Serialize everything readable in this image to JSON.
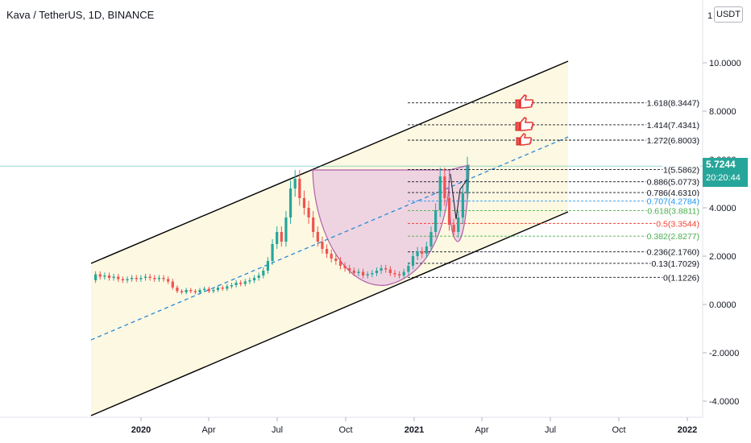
{
  "title": "Kava / TetherUS, 1D, BINANCE",
  "unit_badge": "USDT",
  "price_tag": {
    "price": "5.7244",
    "countdown": "20:20:44"
  },
  "colors": {
    "channel_fill": "#fdf8e2",
    "cup_fill": "#e8c8e0",
    "cup_stroke": "#b060a8",
    "candle_up": "#26a69a",
    "candle_down": "#ef5350",
    "trend_dash": "#2a8ad4",
    "price_line": "#26a69a",
    "thumb": "#ef5350"
  },
  "chart_data": {
    "type": "candlestick",
    "x_ticks": [
      "2020",
      "Apr",
      "Jul",
      "Oct",
      "2021",
      "Apr",
      "Jul",
      "Oct",
      "2022"
    ],
    "y_ticks": [
      "10.0000",
      "8.0000",
      "6.0000",
      "4.0000",
      "2.0000",
      "0.0000",
      "-2.0000",
      "-4.0000"
    ],
    "y_top_label": "1",
    "ylim": [
      -4.5,
      12
    ],
    "last_price": 5.7244,
    "fib_levels": [
      {
        "label": "1.618(8.3447)",
        "value": 8.3447,
        "color": "#131722"
      },
      {
        "label": "1.414(7.4341)",
        "value": 7.4341,
        "color": "#131722"
      },
      {
        "label": "1.272(6.8003)",
        "value": 6.8003,
        "color": "#131722"
      },
      {
        "label": "1(5.5862)",
        "value": 5.5862,
        "color": "#131722"
      },
      {
        "label": "0.886(5.0773)",
        "value": 5.0773,
        "color": "#131722"
      },
      {
        "label": "0.786(4.6310)",
        "value": 4.631,
        "color": "#131722"
      },
      {
        "label": "0.707(4.2784)",
        "value": 4.2784,
        "color": "#2196f3"
      },
      {
        "label": "0.618(3.8811)",
        "value": 3.8811,
        "color": "#4caf50"
      },
      {
        "label": "0.5(3.3544)",
        "value": 3.3544,
        "color": "#f44336"
      },
      {
        "label": "0.382(2.8277)",
        "value": 2.8277,
        "color": "#4caf50"
      },
      {
        "label": "0.236(2.1760)",
        "value": 2.176,
        "color": "#131722"
      },
      {
        "label": "0.13(1.7029)",
        "value": 1.7029,
        "color": "#131722"
      },
      {
        "label": "0(1.1226)",
        "value": 1.1226,
        "color": "#131722"
      }
    ],
    "series": [
      {
        "values": [
          1.0,
          1.25,
          1.15,
          1.2,
          1.1,
          1.15,
          1.05,
          1.0,
          1.05,
          1.1,
          1.05,
          1.1,
          1.15,
          1.1,
          1.05,
          1.1,
          1.05,
          0.95,
          0.7,
          0.55,
          0.5,
          0.6,
          0.55,
          0.5,
          0.6,
          0.65,
          0.55,
          0.6,
          0.7,
          0.65,
          0.75,
          0.8,
          0.9,
          0.85,
          0.95,
          1.0,
          1.1,
          1.2,
          1.4,
          1.8,
          2.5,
          3.0,
          2.6,
          3.6,
          4.8,
          5.2,
          4.4,
          4.0,
          3.6,
          3.0,
          2.6,
          2.3,
          2.1,
          1.9,
          1.8,
          1.6,
          1.5,
          1.4,
          1.3,
          1.35,
          1.2,
          1.25,
          1.3,
          1.4,
          1.5,
          1.45,
          1.3,
          1.25,
          1.2,
          1.35,
          1.6,
          2.0,
          2.2,
          2.1,
          2.4,
          3.0,
          3.9,
          5.3,
          4.4,
          3.3,
          3.0,
          3.6,
          4.6,
          5.72
        ]
      }
    ]
  }
}
